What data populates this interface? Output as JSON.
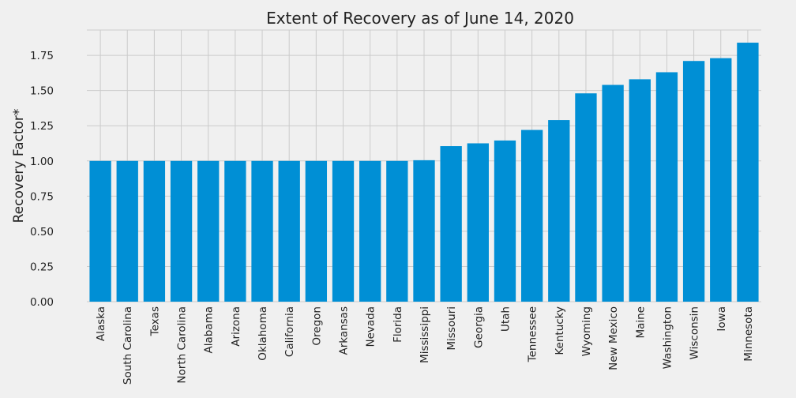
{
  "chart_data": {
    "type": "bar",
    "title": "Extent of Recovery as of June 14, 2020",
    "xlabel": "",
    "ylabel": "Recovery Factor*",
    "ylim": [
      0,
      1.93
    ],
    "yticks": [
      "0.00",
      "0.25",
      "0.50",
      "0.75",
      "1.00",
      "1.25",
      "1.50",
      "1.75"
    ],
    "grid": true,
    "bar_color": "#008fd5",
    "categories": [
      "Alaska",
      "South Carolina",
      "Texas",
      "North Carolina",
      "Alabama",
      "Arizona",
      "Oklahoma",
      "California",
      "Oregon",
      "Arkansas",
      "Nevada",
      "Florida",
      "Mississippi",
      "Missouri",
      "Georgia",
      "Utah",
      "Tennessee",
      "Kentucky",
      "Wyoming",
      "New Mexico",
      "Maine",
      "Washington",
      "Wisconsin",
      "Iowa",
      "Minnesota"
    ],
    "values": [
      1.0,
      1.0,
      1.0,
      1.0,
      1.0,
      1.0,
      1.0,
      1.0,
      1.0,
      1.0,
      1.0,
      1.0,
      1.005,
      1.105,
      1.125,
      1.145,
      1.22,
      1.29,
      1.48,
      1.54,
      1.58,
      1.63,
      1.71,
      1.73,
      1.84
    ]
  }
}
